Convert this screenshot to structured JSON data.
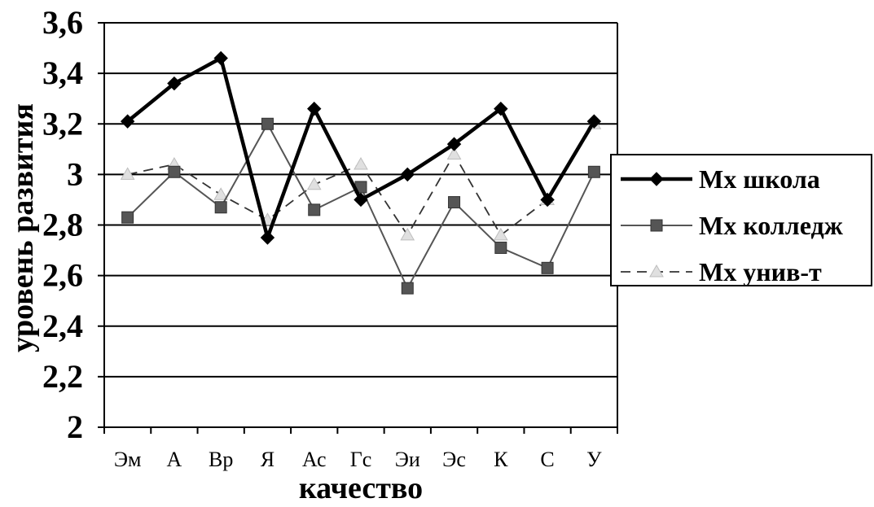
{
  "chart_data": {
    "type": "line",
    "xlabel": "качество",
    "ylabel": "уровень развития",
    "ylim": [
      2,
      3.6
    ],
    "y_ticks": [
      "2",
      "2,2",
      "2,4",
      "2,6",
      "2,8",
      "3",
      "3,2",
      "3,4",
      "3,6"
    ],
    "grid": true,
    "legend_position": "right",
    "categories": [
      "Эм",
      "А",
      "Вр",
      "Я",
      "Ас",
      "Гс",
      "Эи",
      "Эс",
      "К",
      "С",
      "У"
    ],
    "series": [
      {
        "name": "Mx школа",
        "style": "solid-thick",
        "marker": "diamond",
        "color": "#000000",
        "values": [
          3.21,
          3.36,
          3.46,
          2.75,
          3.26,
          2.9,
          3.0,
          3.12,
          3.26,
          2.9,
          3.21
        ]
      },
      {
        "name": "Mx колледж",
        "style": "solid-thin",
        "marker": "square",
        "color": "#555555",
        "values": [
          2.83,
          3.01,
          2.87,
          3.2,
          2.86,
          2.95,
          2.55,
          2.89,
          2.71,
          2.63,
          3.01
        ]
      },
      {
        "name": "Mx унив-т",
        "style": "dashed",
        "marker": "triangle",
        "color": "#e0e0e0",
        "values": [
          3.0,
          3.04,
          2.92,
          2.82,
          2.96,
          3.04,
          2.76,
          3.08,
          2.76,
          2.9,
          3.2
        ]
      }
    ]
  }
}
